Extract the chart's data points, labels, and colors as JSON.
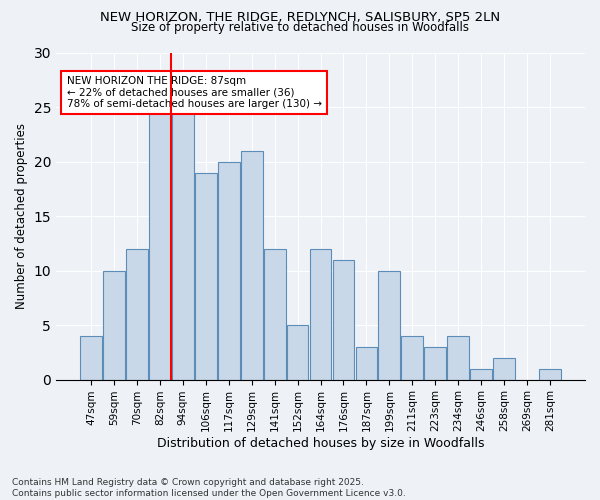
{
  "title_line1": "NEW HORIZON, THE RIDGE, REDLYNCH, SALISBURY, SP5 2LN",
  "title_line2": "Size of property relative to detached houses in Woodfalls",
  "xlabel": "Distribution of detached houses by size in Woodfalls",
  "ylabel": "Number of detached properties",
  "categories": [
    "47sqm",
    "59sqm",
    "70sqm",
    "82sqm",
    "94sqm",
    "106sqm",
    "117sqm",
    "129sqm",
    "141sqm",
    "152sqm",
    "164sqm",
    "176sqm",
    "187sqm",
    "199sqm",
    "211sqm",
    "223sqm",
    "234sqm",
    "246sqm",
    "258sqm",
    "269sqm",
    "281sqm"
  ],
  "values": [
    4,
    10,
    12,
    25,
    25,
    19,
    20,
    21,
    12,
    5,
    12,
    11,
    3,
    10,
    4,
    3,
    4,
    1,
    2,
    0,
    1
  ],
  "bar_color": "#c8d8e8",
  "bar_edge_color": "#5b8db8",
  "vline_color": "red",
  "vline_x": 3.5,
  "annotation_text": "NEW HORIZON THE RIDGE: 87sqm\n← 22% of detached houses are smaller (36)\n78% of semi-detached houses are larger (130) →",
  "annotation_box_color": "white",
  "annotation_box_edge_color": "red",
  "ylim": [
    0,
    30
  ],
  "yticks": [
    0,
    5,
    10,
    15,
    20,
    25,
    30
  ],
  "footer": "Contains HM Land Registry data © Crown copyright and database right 2025.\nContains public sector information licensed under the Open Government Licence v3.0.",
  "bg_color": "#eef2f7",
  "plot_bg_color": "#eef2f7"
}
